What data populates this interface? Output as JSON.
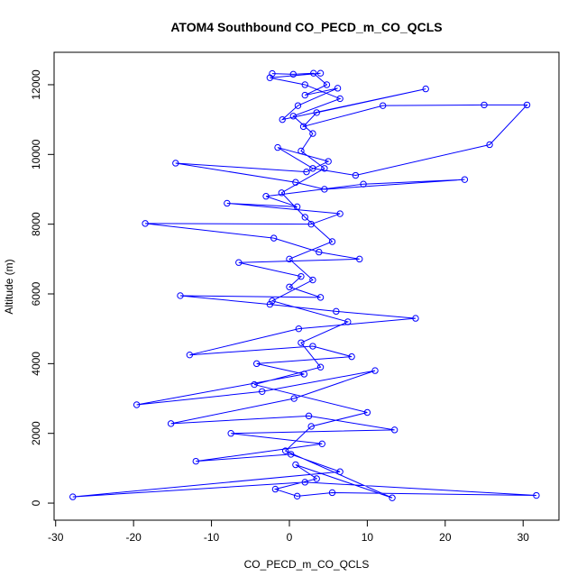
{
  "chart_data": {
    "type": "line",
    "title": "ATOM4 Southbound CO_PECD_m_CO_QCLS",
    "xlabel": "CO_PECD_m_CO_QCLS",
    "ylabel": "Altitude (m)",
    "x": [
      -2.2,
      0.5,
      3.1,
      4.8,
      2.0,
      6.2,
      1.1,
      -0.9,
      17.5,
      3.5,
      1.8,
      12.0,
      25.0,
      30.5,
      25.7,
      8.5,
      3.0,
      -1.5,
      5.0,
      2.2,
      -14.6,
      0.8,
      4.5,
      22.5,
      9.5,
      -3.0,
      1.0,
      -8.0,
      6.5,
      2.8,
      -18.5,
      -2.0,
      3.8,
      9.0,
      -6.5,
      1.5,
      0.0,
      4.0,
      -14.0,
      -2.5,
      6.0,
      16.2,
      1.2,
      -12.8,
      3.0,
      8.0,
      -4.2,
      1.9,
      -19.6,
      -3.5,
      11.0,
      0.6,
      -15.2,
      2.5,
      13.5,
      -7.5,
      4.2,
      -12.0,
      0.2,
      6.5,
      -27.8,
      2.0,
      31.7,
      5.5,
      1.0,
      -1.8,
      3.5,
      0.8,
      13.2,
      -0.5,
      2.8,
      10.0,
      -4.5,
      4.0,
      1.5,
      7.5,
      -2.2,
      3.0,
      0.0,
      5.5,
      2.0,
      -1.0,
      4.5,
      1.5,
      3.0,
      0.5,
      6.5,
      2.0,
      -2.5,
      4.0
    ],
    "values": [
      12320,
      12300,
      12330,
      12000,
      11700,
      11900,
      11400,
      11000,
      11880,
      11200,
      10800,
      11400,
      11420,
      11420,
      10280,
      9400,
      9600,
      10200,
      9800,
      9500,
      9750,
      9200,
      9000,
      9280,
      9150,
      8800,
      8500,
      8600,
      8300,
      8000,
      8020,
      7600,
      7200,
      7000,
      6900,
      6500,
      6200,
      5900,
      5950,
      5700,
      5500,
      5300,
      5000,
      4250,
      4500,
      4200,
      4000,
      3700,
      2820,
      3200,
      3800,
      3000,
      2280,
      2500,
      2100,
      2000,
      1700,
      1200,
      1400,
      900,
      180,
      600,
      220,
      300,
      200,
      400,
      700,
      1100,
      150,
      1500,
      2200,
      2600,
      3400,
      3900,
      4600,
      5200,
      5800,
      6400,
      7000,
      7500,
      8200,
      8900,
      9600,
      10100,
      10600,
      11100,
      11600,
      12000,
      12200,
      12330
    ],
    "color": "#0000ff",
    "xlim": [
      -30.2,
      34.6
    ],
    "xticks": [
      -30,
      -20,
      -10,
      0,
      10,
      20,
      30
    ],
    "ylim": [
      -490,
      12930
    ],
    "yticks": [
      0,
      2000,
      4000,
      6000,
      8000,
      10000,
      12000
    ]
  }
}
